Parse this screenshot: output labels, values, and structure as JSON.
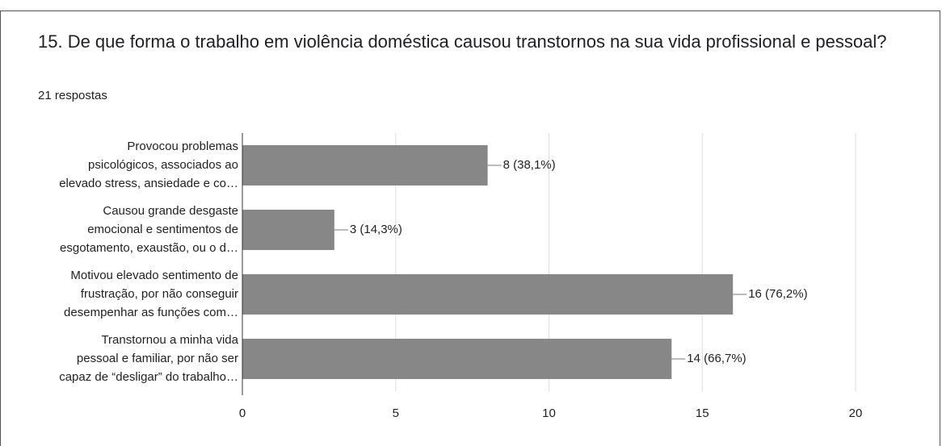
{
  "chart_data": {
    "type": "bar",
    "orientation": "horizontal",
    "title": "15.  De que forma o trabalho em violência doméstica causou transtornos na sua vida profissional e pessoal?",
    "subtitle": "21 respostas",
    "categories": [
      [
        "Provocou problemas",
        "psicológicos, associados ao",
        "elevado stress, ansiedade e co…"
      ],
      [
        "Causou grande desgaste",
        "emocional e sentimentos de",
        "esgotamento, exaustão, ou o d…"
      ],
      [
        "Motivou elevado sentimento de",
        "frustração, por não conseguir",
        "desempenhar as funções com…"
      ],
      [
        "Transtornou a minha vida",
        "pessoal e familiar, por não ser",
        "capaz de “desligar” do trabalho…"
      ]
    ],
    "values": [
      8,
      3,
      16,
      14
    ],
    "value_labels": [
      "8 (38,1%)",
      "3 (14,3%)",
      "16 (76,2%)",
      "14 (66,7%)"
    ],
    "color": "#878787",
    "xlim": [
      0,
      20
    ],
    "xticks": [
      0,
      5,
      10,
      15,
      20
    ],
    "grid": true
  }
}
